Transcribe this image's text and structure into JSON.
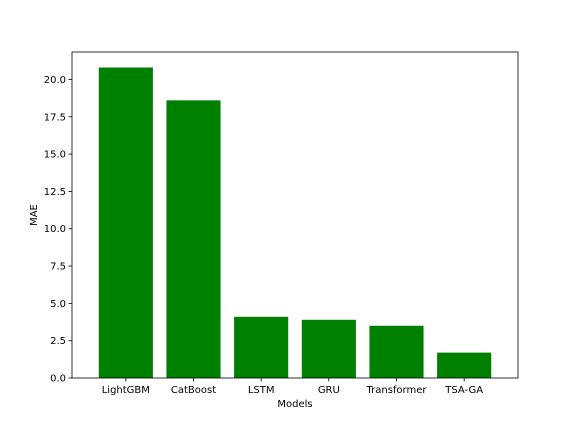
{
  "chart_data": {
    "type": "bar",
    "categories": [
      "LightGBM",
      "CatBoost",
      "LSTM",
      "GRU",
      "Transformer",
      "TSA-GA"
    ],
    "values": [
      20.8,
      18.6,
      4.1,
      3.9,
      3.5,
      1.7
    ],
    "title": "",
    "xlabel": "Models",
    "ylabel": "MAE",
    "ylim": [
      0,
      21.84
    ],
    "yticks": [
      0.0,
      2.5,
      5.0,
      7.5,
      10.0,
      12.5,
      15.0,
      17.5,
      20.0
    ],
    "ytick_labels": [
      "0.0",
      "2.5",
      "5.0",
      "7.5",
      "10.0",
      "12.5",
      "15.0",
      "17.5",
      "20.0"
    ],
    "bar_color": "#008000",
    "grid": false,
    "legend": "none"
  }
}
